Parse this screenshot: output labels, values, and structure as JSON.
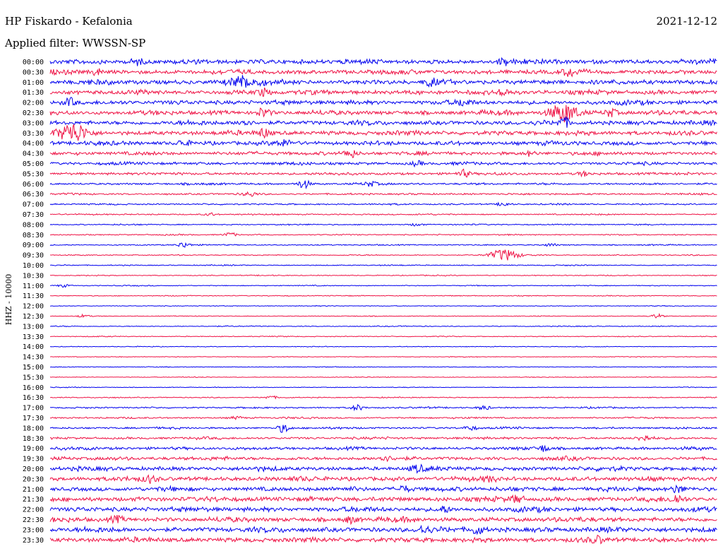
{
  "header": {
    "station": "HP Fiskardo - Kefalonia",
    "date": "2021-12-12",
    "filter": "Applied filter: WWSSN-SP"
  },
  "chart_data": {
    "type": "line",
    "title": "HP Fiskardo - Kefalonia",
    "ylabel": "HHZ - 10000",
    "row_interval_minutes": 30,
    "colors": [
      "#0000ee",
      "#ee1144"
    ],
    "rows": [
      {
        "label": "00:00",
        "noise": 3.2,
        "events": [
          [
            0.13,
            4
          ],
          [
            0.68,
            4
          ]
        ]
      },
      {
        "label": "00:30",
        "noise": 3.0,
        "events": [
          [
            0.07,
            4
          ],
          [
            0.78,
            5
          ]
        ]
      },
      {
        "label": "01:00",
        "noise": 3.2,
        "events": [
          [
            0.29,
            8
          ],
          [
            0.57,
            4
          ]
        ]
      },
      {
        "label": "01:30",
        "noise": 3.0,
        "events": [
          [
            0.32,
            5
          ],
          [
            0.68,
            5
          ]
        ]
      },
      {
        "label": "02:00",
        "noise": 3.0,
        "events": [
          [
            0.03,
            5
          ],
          [
            0.62,
            4
          ]
        ]
      },
      {
        "label": "02:30",
        "noise": 3.0,
        "events": [
          [
            0.32,
            6
          ],
          [
            0.77,
            12
          ],
          [
            0.84,
            5
          ]
        ]
      },
      {
        "label": "03:00",
        "noise": 3.0,
        "events": [
          [
            0.29,
            5
          ],
          [
            0.77,
            7
          ]
        ]
      },
      {
        "label": "03:30",
        "noise": 3.0,
        "events": [
          [
            0.035,
            12
          ],
          [
            0.32,
            6
          ]
        ]
      },
      {
        "label": "04:00",
        "noise": 2.8,
        "events": [
          [
            0.2,
            4
          ],
          [
            0.35,
            4
          ]
        ]
      },
      {
        "label": "04:30",
        "noise": 2.4,
        "events": [
          [
            0.45,
            6
          ],
          [
            0.72,
            3
          ]
        ]
      },
      {
        "label": "05:00",
        "noise": 2.0,
        "events": [
          [
            0.55,
            3
          ]
        ]
      },
      {
        "label": "05:30",
        "noise": 1.8,
        "events": [
          [
            0.62,
            5
          ],
          [
            0.8,
            3
          ]
        ]
      },
      {
        "label": "06:00",
        "noise": 1.4,
        "events": [
          [
            0.38,
            6
          ],
          [
            0.48,
            3
          ]
        ]
      },
      {
        "label": "06:30",
        "noise": 1.2,
        "events": [
          [
            0.3,
            3
          ]
        ]
      },
      {
        "label": "07:00",
        "noise": 1.0,
        "events": [
          [
            0.68,
            3
          ]
        ]
      },
      {
        "label": "07:30",
        "noise": 0.9,
        "events": [
          [
            0.24,
            2
          ]
        ]
      },
      {
        "label": "08:00",
        "noise": 0.8,
        "events": [
          [
            0.55,
            2
          ]
        ]
      },
      {
        "label": "08:30",
        "noise": 0.8,
        "events": [
          [
            0.27,
            3
          ]
        ]
      },
      {
        "label": "09:00",
        "noise": 0.8,
        "events": [
          [
            0.2,
            4
          ],
          [
            0.75,
            2
          ]
        ]
      },
      {
        "label": "09:30",
        "noise": 0.7,
        "events": [
          [
            0.68,
            8
          ]
        ]
      },
      {
        "label": "10:00",
        "noise": 0.7,
        "events": []
      },
      {
        "label": "10:30",
        "noise": 0.6,
        "events": []
      },
      {
        "label": "11:00",
        "noise": 0.6,
        "events": [
          [
            0.02,
            2
          ]
        ]
      },
      {
        "label": "11:30",
        "noise": 0.6,
        "events": []
      },
      {
        "label": "12:00",
        "noise": 0.5,
        "events": []
      },
      {
        "label": "12:30",
        "noise": 0.5,
        "events": [
          [
            0.05,
            2
          ],
          [
            0.91,
            3
          ]
        ]
      },
      {
        "label": "13:00",
        "noise": 0.6,
        "events": []
      },
      {
        "label": "13:30",
        "noise": 0.6,
        "events": []
      },
      {
        "label": "14:00",
        "noise": 0.5,
        "events": []
      },
      {
        "label": "14:30",
        "noise": 0.5,
        "events": []
      },
      {
        "label": "15:00",
        "noise": 0.5,
        "events": []
      },
      {
        "label": "15:30",
        "noise": 0.5,
        "events": []
      },
      {
        "label": "16:00",
        "noise": 0.5,
        "events": []
      },
      {
        "label": "16:30",
        "noise": 0.7,
        "events": [
          [
            0.33,
            2
          ]
        ]
      },
      {
        "label": "17:00",
        "noise": 1.0,
        "events": [
          [
            0.46,
            4
          ],
          [
            0.65,
            3
          ]
        ]
      },
      {
        "label": "17:30",
        "noise": 1.1,
        "events": [
          [
            0.28,
            2
          ]
        ]
      },
      {
        "label": "18:00",
        "noise": 1.3,
        "events": [
          [
            0.35,
            6
          ],
          [
            0.63,
            3
          ]
        ]
      },
      {
        "label": "18:30",
        "noise": 1.6,
        "events": [
          [
            0.89,
            4
          ]
        ]
      },
      {
        "label": "19:00",
        "noise": 2.0,
        "events": [
          [
            0.74,
            4
          ]
        ]
      },
      {
        "label": "19:30",
        "noise": 2.4,
        "events": [
          [
            0.5,
            3
          ]
        ]
      },
      {
        "label": "20:00",
        "noise": 2.8,
        "events": [
          [
            0.55,
            4
          ]
        ]
      },
      {
        "label": "20:30",
        "noise": 3.0,
        "events": [
          [
            0.15,
            4
          ],
          [
            0.66,
            3
          ]
        ]
      },
      {
        "label": "21:00",
        "noise": 3.0,
        "events": [
          [
            0.53,
            4
          ],
          [
            0.94,
            5
          ]
        ]
      },
      {
        "label": "21:30",
        "noise": 3.2,
        "events": [
          [
            0.7,
            5
          ],
          [
            0.94,
            5
          ]
        ]
      },
      {
        "label": "22:00",
        "noise": 3.2,
        "events": [
          [
            0.59,
            4
          ]
        ]
      },
      {
        "label": "22:30",
        "noise": 3.2,
        "events": [
          [
            0.1,
            4
          ],
          [
            0.45,
            4
          ]
        ]
      },
      {
        "label": "23:00",
        "noise": 3.4,
        "events": [
          [
            0.56,
            5
          ],
          [
            0.64,
            6
          ]
        ]
      },
      {
        "label": "23:30",
        "noise": 3.2,
        "events": [
          [
            0.82,
            4
          ]
        ]
      }
    ]
  }
}
